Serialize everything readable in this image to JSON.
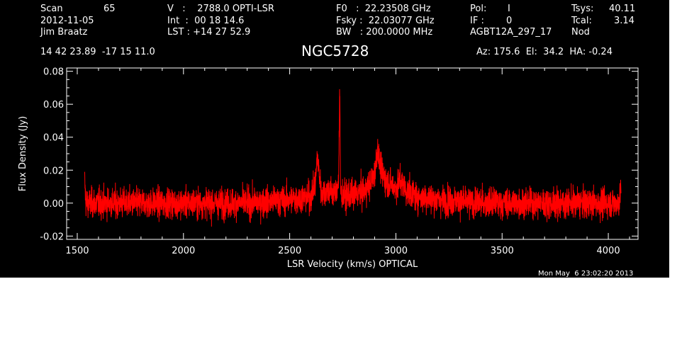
{
  "header": {
    "scan_label": "Scan",
    "scan_value": "65",
    "date": "2012-11-05",
    "observer": "Jim Braatz",
    "v_line": "V   :    2788.0 OPTI-LSR",
    "int_line": "Int  :  00 18 14.6",
    "lst_line": "LST : +14 27 52.9",
    "f0_line": "F0   :  22.23508 GHz",
    "fsky_line": "Fsky :  22.03077 GHz",
    "bw_line": "BW   : 200.0000 MHz",
    "pol_label": "Pol:",
    "pol_value": "I",
    "if_label": "IF :",
    "if_value": "0",
    "project": "AGBT12A_297_17",
    "tsys_label": "Tsys:",
    "tsys_value": "40.11",
    "tcal_label": "Tcal:",
    "tcal_value": "3.14",
    "proc": "Nod",
    "coords": "14 42 23.89  -17 15 11.0",
    "source": "NGC5728",
    "az_el_ha": "Az: 175.6  El:  34.2  HA: -0.24"
  },
  "footer": {
    "timestamp": "Mon May  6 23:02:20 2013"
  },
  "colors": {
    "background": "#000000",
    "axes": "#ffffff",
    "trace": "#ff0000"
  },
  "chart_data": {
    "type": "line",
    "title": "NGC5728",
    "xlabel": "LSR Velocity (km/s) OPTICAL",
    "ylabel": "Flux Density (Jy)",
    "xlim": [
      1450,
      4140
    ],
    "ylim": [
      -0.022,
      0.082
    ],
    "x_ticks": [
      1500,
      2000,
      2500,
      3000,
      3500,
      4000
    ],
    "y_ticks": [
      -0.02,
      0.0,
      0.02,
      0.04,
      0.06,
      0.08
    ],
    "x_tick_labels": [
      "1500",
      "2000",
      "2500",
      "3000",
      "3500",
      "4000"
    ],
    "y_tick_labels": [
      "-0.02",
      "0.00",
      "0.02",
      "0.04",
      "0.06",
      "0.08"
    ],
    "grid": false,
    "series": [
      {
        "x": [
          1535,
          1540,
          1550,
          1600,
          1700,
          1800,
          1900,
          2000,
          2100,
          2200,
          2300,
          2400,
          2500,
          2550,
          2600,
          2620,
          2630,
          2650,
          2680,
          2700,
          2720,
          2730,
          2736,
          2740,
          2760,
          2800,
          2850,
          2880,
          2900,
          2915,
          2920,
          2930,
          2950,
          2980,
          3000,
          3020,
          3050,
          3100,
          3200,
          3300,
          3400,
          3500,
          3600,
          3700,
          3800,
          3900,
          4000,
          4050,
          4060
        ],
        "y": [
          0.013,
          0.001,
          0.0,
          0.0,
          0.0,
          0.0,
          0.0,
          0.0,
          0.0,
          0.0,
          0.0,
          0.001,
          0.002,
          0.003,
          0.004,
          0.011,
          0.028,
          0.006,
          0.008,
          0.006,
          0.007,
          0.014,
          0.068,
          0.006,
          0.004,
          0.005,
          0.007,
          0.012,
          0.018,
          0.034,
          0.026,
          0.02,
          0.014,
          0.011,
          0.009,
          0.014,
          0.007,
          0.004,
          0.002,
          0.001,
          0.0,
          0.0,
          0.0,
          0.0,
          0.0,
          0.0,
          0.0,
          0.0,
          0.012
        ]
      }
    ],
    "noise_rms": 0.005
  }
}
